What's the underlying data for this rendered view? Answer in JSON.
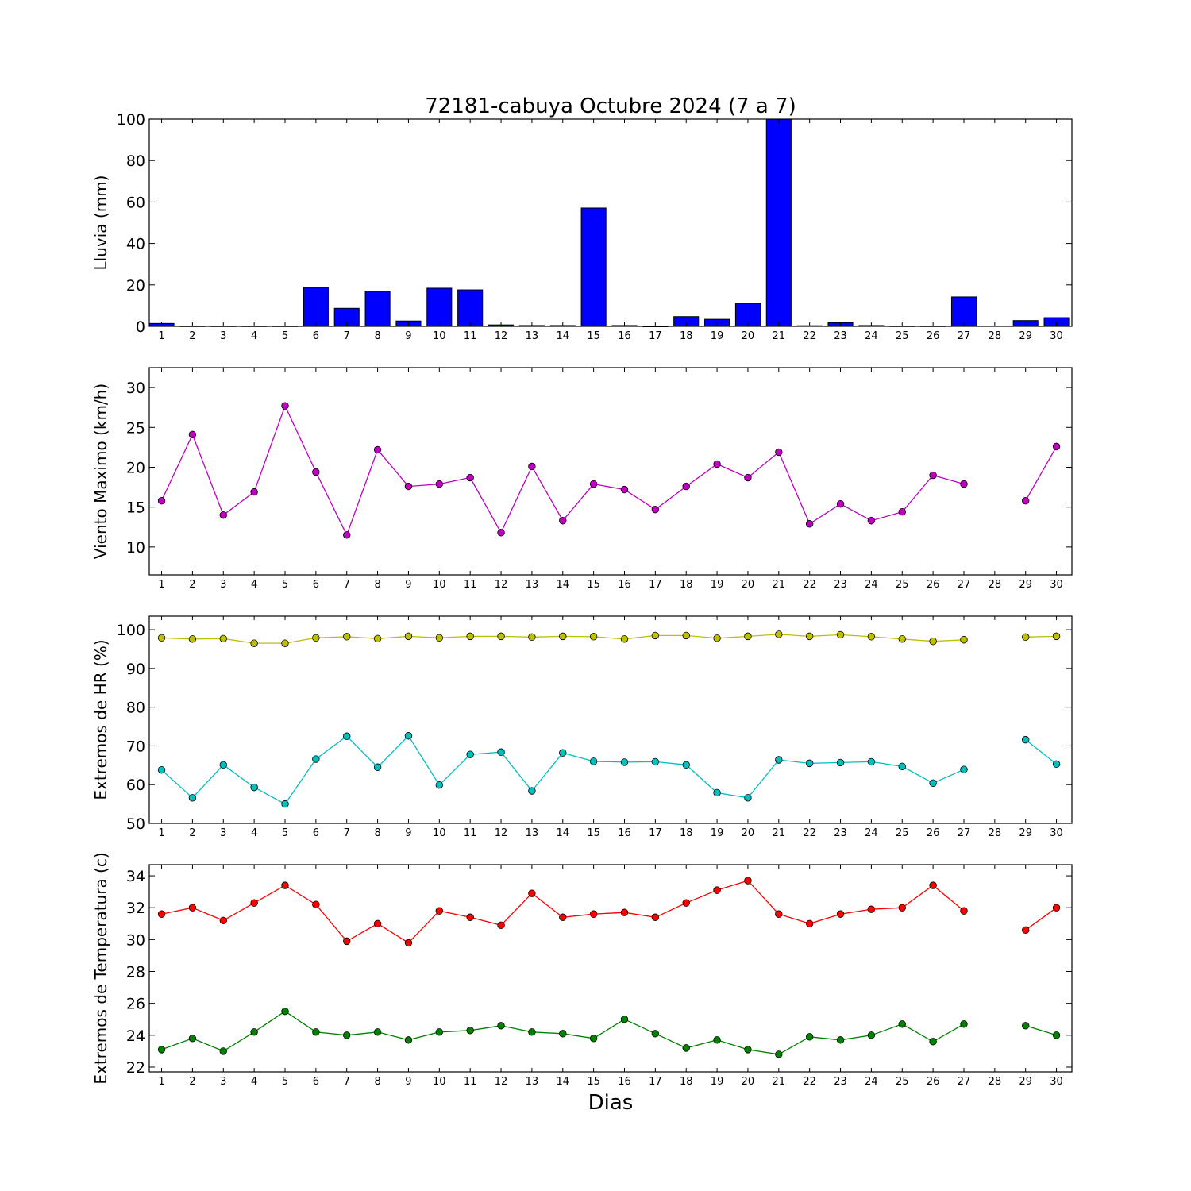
{
  "title": "72181-cabuya Octubre 2024  (7 a 7)",
  "xlabel": "Dias",
  "colors": {
    "rain": "#0000ff",
    "wind": "#bf00bf",
    "hr_max": "#bfbf00",
    "hr_min": "#00bfbf",
    "temp_max": "#ff0000",
    "temp_min": "#008000"
  },
  "chart_data": [
    {
      "type": "bar",
      "ylabel": "Lluvia (mm)",
      "x": [
        1,
        2,
        3,
        4,
        5,
        6,
        7,
        8,
        9,
        10,
        11,
        12,
        13,
        14,
        15,
        16,
        17,
        18,
        19,
        20,
        21,
        22,
        23,
        24,
        25,
        26,
        27,
        28,
        29,
        30
      ],
      "x_ticks": [
        "1",
        "2",
        "3",
        "4",
        "5",
        "6",
        "7",
        "8",
        "9",
        "10",
        "11",
        "12",
        "13",
        "14",
        "15",
        "16",
        "17",
        "18",
        "19",
        "20",
        "21",
        "22",
        "23",
        "24",
        "25",
        "26",
        "27",
        "28",
        "29",
        "30"
      ],
      "ylim": [
        0,
        100
      ],
      "y_ticks": [
        "0",
        "20",
        "40",
        "60",
        "80",
        "100"
      ],
      "series": [
        {
          "color_key": "rain",
          "values": [
            1.4,
            0.1,
            0.1,
            0.1,
            0.1,
            18.8,
            8.7,
            16.9,
            2.6,
            18.4,
            17.6,
            0.7,
            0.4,
            0.4,
            57.1,
            0.4,
            0,
            4.7,
            3.4,
            11.1,
            100,
            0.3,
            1.8,
            0.4,
            0.1,
            0.1,
            14.2,
            null,
            2.8,
            4.2
          ]
        }
      ]
    },
    {
      "type": "line",
      "ylabel": "Viento Maximo (km/h)",
      "x": [
        1,
        2,
        3,
        4,
        5,
        6,
        7,
        8,
        9,
        10,
        11,
        12,
        13,
        14,
        15,
        16,
        17,
        18,
        19,
        20,
        21,
        22,
        23,
        24,
        25,
        26,
        27,
        28,
        29,
        30
      ],
      "x_ticks": [
        "1",
        "2",
        "3",
        "4",
        "5",
        "6",
        "7",
        "8",
        "9",
        "10",
        "11",
        "12",
        "13",
        "14",
        "15",
        "16",
        "17",
        "18",
        "19",
        "20",
        "21",
        "22",
        "23",
        "24",
        "25",
        "26",
        "27",
        "28",
        "29",
        "30"
      ],
      "ylim": [
        6.5,
        32.5
      ],
      "y_ticks": [
        "10",
        "15",
        "20",
        "25",
        "30"
      ],
      "series": [
        {
          "color_key": "wind",
          "values": [
            15.8,
            24.1,
            14.0,
            16.9,
            27.7,
            19.4,
            11.5,
            22.2,
            17.6,
            17.9,
            18.7,
            11.8,
            20.1,
            13.3,
            17.9,
            17.2,
            14.7,
            17.6,
            20.4,
            18.7,
            21.9,
            12.9,
            15.4,
            13.3,
            14.4,
            19.0,
            17.9,
            null,
            15.8,
            22.6
          ]
        }
      ]
    },
    {
      "type": "line",
      "ylabel": "Extremos de HR (%)",
      "x": [
        1,
        2,
        3,
        4,
        5,
        6,
        7,
        8,
        9,
        10,
        11,
        12,
        13,
        14,
        15,
        16,
        17,
        18,
        19,
        20,
        21,
        22,
        23,
        24,
        25,
        26,
        27,
        28,
        29,
        30
      ],
      "x_ticks": [
        "1",
        "2",
        "3",
        "4",
        "5",
        "6",
        "7",
        "8",
        "9",
        "10",
        "11",
        "12",
        "13",
        "14",
        "15",
        "16",
        "17",
        "18",
        "19",
        "20",
        "21",
        "22",
        "23",
        "24",
        "25",
        "26",
        "27",
        "28",
        "29",
        "30"
      ],
      "ylim": [
        50,
        103.5
      ],
      "y_ticks": [
        "50",
        "60",
        "70",
        "80",
        "90",
        "100"
      ],
      "series": [
        {
          "color_key": "hr_max",
          "values": [
            97.9,
            97.6,
            97.7,
            96.5,
            96.5,
            97.9,
            98.2,
            97.7,
            98.3,
            97.9,
            98.3,
            98.3,
            98.1,
            98.3,
            98.2,
            97.6,
            98.5,
            98.5,
            97.8,
            98.3,
            98.8,
            98.3,
            98.7,
            98.2,
            97.6,
            97.0,
            97.4,
            null,
            98.1,
            98.3
          ]
        },
        {
          "color_key": "hr_min",
          "values": [
            63.8,
            56.6,
            65.1,
            59.3,
            55.0,
            66.6,
            72.5,
            64.5,
            72.6,
            59.9,
            67.8,
            68.4,
            58.4,
            68.2,
            66.0,
            65.8,
            65.9,
            65.1,
            57.9,
            56.6,
            66.4,
            65.5,
            65.7,
            65.9,
            64.7,
            60.4,
            63.9,
            null,
            71.6,
            65.3
          ]
        }
      ]
    },
    {
      "type": "line",
      "ylabel": "Extremos de Temperatura (c)",
      "x": [
        1,
        2,
        3,
        4,
        5,
        6,
        7,
        8,
        9,
        10,
        11,
        12,
        13,
        14,
        15,
        16,
        17,
        18,
        19,
        20,
        21,
        22,
        23,
        24,
        25,
        26,
        27,
        28,
        29,
        30
      ],
      "x_ticks": [
        "1",
        "2",
        "3",
        "4",
        "5",
        "6",
        "7",
        "8",
        "9",
        "10",
        "11",
        "12",
        "13",
        "14",
        "15",
        "16",
        "17",
        "18",
        "19",
        "20",
        "21",
        "22",
        "23",
        "24",
        "25",
        "26",
        "27",
        "28",
        "29",
        "30"
      ],
      "ylim": [
        21.7,
        34.7
      ],
      "y_ticks": [
        "22",
        "24",
        "26",
        "28",
        "30",
        "32",
        "34"
      ],
      "series": [
        {
          "color_key": "temp_max",
          "values": [
            31.6,
            32.0,
            31.2,
            32.3,
            33.4,
            32.2,
            29.9,
            31.0,
            29.8,
            31.8,
            31.4,
            30.9,
            32.9,
            31.4,
            31.6,
            31.7,
            31.4,
            32.3,
            33.1,
            33.7,
            31.6,
            31.0,
            31.6,
            31.9,
            32.0,
            33.4,
            31.8,
            null,
            30.6,
            32.0
          ]
        },
        {
          "color_key": "temp_min",
          "values": [
            23.1,
            23.8,
            23.0,
            24.2,
            25.5,
            24.2,
            24.0,
            24.2,
            23.7,
            24.2,
            24.3,
            24.6,
            24.2,
            24.1,
            23.8,
            25.0,
            24.1,
            23.2,
            23.7,
            23.1,
            22.8,
            23.9,
            23.7,
            24.0,
            24.7,
            23.6,
            24.7,
            null,
            24.6,
            24.0
          ]
        }
      ]
    }
  ]
}
